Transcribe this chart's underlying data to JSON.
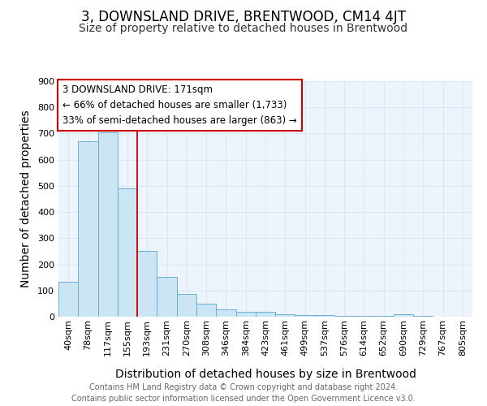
{
  "title": "3, DOWNSLAND DRIVE, BRENTWOOD, CM14 4JT",
  "subtitle": "Size of property relative to detached houses in Brentwood",
  "xlabel": "Distribution of detached houses by size in Brentwood",
  "ylabel": "Number of detached properties",
  "footer_line1": "Contains HM Land Registry data © Crown copyright and database right 2024.",
  "footer_line2": "Contains public sector information licensed under the Open Government Licence v3.0.",
  "bin_labels": [
    "40sqm",
    "78sqm",
    "117sqm",
    "155sqm",
    "193sqm",
    "231sqm",
    "270sqm",
    "308sqm",
    "346sqm",
    "384sqm",
    "423sqm",
    "461sqm",
    "499sqm",
    "537sqm",
    "576sqm",
    "614sqm",
    "652sqm",
    "690sqm",
    "729sqm",
    "767sqm",
    "805sqm"
  ],
  "bar_heights": [
    135,
    670,
    705,
    490,
    250,
    152,
    87,
    50,
    28,
    20,
    18,
    10,
    7,
    5,
    4,
    3,
    3,
    8,
    2,
    1,
    1
  ],
  "bar_color": "#cce5f5",
  "bar_edge_color": "#6aaed6",
  "grid_color": "#d8e8f4",
  "red_line_x": 4,
  "red_line_color": "#cc0000",
  "annotation_text_line1": "3 DOWNSLAND DRIVE: 171sqm",
  "annotation_text_line2": "← 66% of detached houses are smaller (1,733)",
  "annotation_text_line3": "33% of semi-detached houses are larger (863) →",
  "annotation_box_edge_color": "#cc0000",
  "ylim": [
    0,
    900
  ],
  "yticks": [
    0,
    100,
    200,
    300,
    400,
    500,
    600,
    700,
    800,
    900
  ],
  "background_color": "#eef4fb",
  "title_fontsize": 12,
  "subtitle_fontsize": 10,
  "axis_label_fontsize": 10,
  "tick_fontsize": 8,
  "annotation_fontsize": 8.5,
  "footer_fontsize": 7.0
}
